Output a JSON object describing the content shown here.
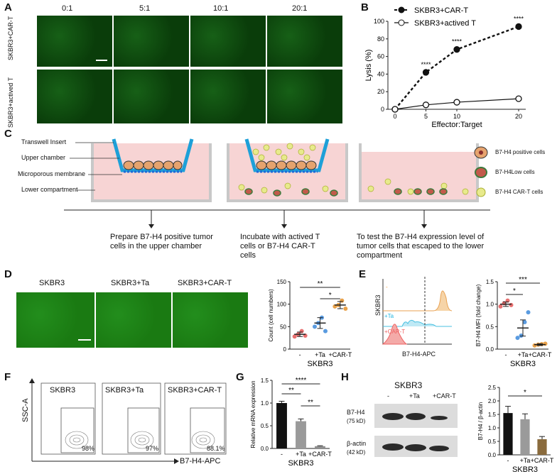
{
  "panels": {
    "a": {
      "label": "A",
      "ratios": [
        "0:1",
        "5:1",
        "10:1",
        "20:1"
      ],
      "rows": [
        "SKBR3+CAR-T",
        "SKBR3+actived T"
      ]
    },
    "b": {
      "label": "B"
    },
    "c": {
      "label": "C",
      "labels": [
        "Transwell Insert",
        "Upper chamber",
        "Microporous membrane",
        "Lower compartment"
      ],
      "legend": [
        "B7-H4 positive cells",
        "B7-H4Low cells",
        "B7-H4 CAR-T cells"
      ],
      "steps": [
        "Prepare B7-H4 positive tumor cells in the upper chamber",
        "Incubate with actived T cells or B7-H4 CAR-T cells",
        "To test the B7-H4 expression level of tumor cells that escaped to the lower compartment"
      ]
    },
    "d": {
      "label": "D",
      "images": [
        "SKBR3",
        "SKBR3+Ta",
        "SKBR3+CAR-T"
      ]
    },
    "e": {
      "label": "E",
      "sample": "SKBR3",
      "traces": [
        "-",
        "+Ta",
        "+CAR-T"
      ],
      "xlabel": "B7-H4-APC"
    },
    "f": {
      "label": "F",
      "panels": [
        "SKBR3",
        "SKBR3+Ta",
        "SKBR3+CAR-T"
      ],
      "gate": "APC-A, SSC-A subset",
      "percents": [
        "98%",
        "97%",
        "88.1%"
      ],
      "ylabel": "SSC-A",
      "xlabel": "B7-H4-APC"
    },
    "g": {
      "label": "G"
    },
    "h": {
      "label": "H",
      "sample": "SKBR3",
      "lanes": [
        "-",
        "+Ta",
        "+CAR-T"
      ],
      "bands": [
        "B7-H4",
        "(75 kD)",
        "β-actin",
        "(42 kD)"
      ]
    }
  },
  "chart_data": [
    {
      "id": "B",
      "type": "line",
      "xlabel": "Effector:Target",
      "ylabel": "Lysis (%)",
      "x": [
        0,
        5,
        10,
        20
      ],
      "ylim": [
        0,
        100
      ],
      "yticks": [
        0,
        20,
        40,
        60,
        80,
        100
      ],
      "series": [
        {
          "name": "SKBR3+CAR-T",
          "values": [
            0,
            42,
            68,
            94
          ]
        },
        {
          "name": "SKBR3+actived T",
          "values": [
            0,
            5,
            8,
            12
          ]
        }
      ],
      "annotations": [
        "****",
        "****",
        "****"
      ]
    },
    {
      "id": "D",
      "type": "scatter",
      "ylabel": "Count (cell numbers)",
      "categories": [
        "-",
        "+Ta",
        "+CAR-T"
      ],
      "xlabel": "SKBR3",
      "ylim": [
        0,
        150
      ],
      "yticks": [
        0,
        50,
        100,
        150
      ],
      "means": [
        33,
        58,
        98
      ],
      "annotations": [
        "**",
        "*"
      ]
    },
    {
      "id": "E",
      "type": "scatter",
      "ylabel": "B7-H4 MFI (fold change)",
      "categories": [
        "-",
        "+Ta",
        "+CAR-T"
      ],
      "xlabel": "SKBR3",
      "ylim": [
        0,
        1.5
      ],
      "yticks": [
        0.0,
        0.5,
        1.0,
        1.5
      ],
      "means": [
        1.0,
        0.47,
        0.1
      ],
      "annotations": [
        "***",
        "*"
      ]
    },
    {
      "id": "G",
      "type": "bar",
      "ylabel": "Relative mRNA expression",
      "categories": [
        "-",
        "+Ta",
        "+CAR-T"
      ],
      "xlabel": "SKBR3",
      "ylim": [
        0,
        1.5
      ],
      "yticks": [
        0.0,
        0.5,
        1.0,
        1.5
      ],
      "values": [
        1.0,
        0.6,
        0.05
      ],
      "annotations": [
        "****",
        "**",
        "**"
      ]
    },
    {
      "id": "H",
      "type": "bar",
      "ylabel": "B7-H4 / β-actin",
      "categories": [
        "-",
        "+Ta",
        "+CAR-T"
      ],
      "xlabel": "SKBR3",
      "ylim": [
        0,
        2.5
      ],
      "yticks": [
        0.0,
        0.5,
        1.0,
        1.5,
        2.0,
        2.5
      ],
      "values": [
        1.55,
        1.32,
        0.58
      ],
      "annotations": [
        "*"
      ]
    }
  ]
}
